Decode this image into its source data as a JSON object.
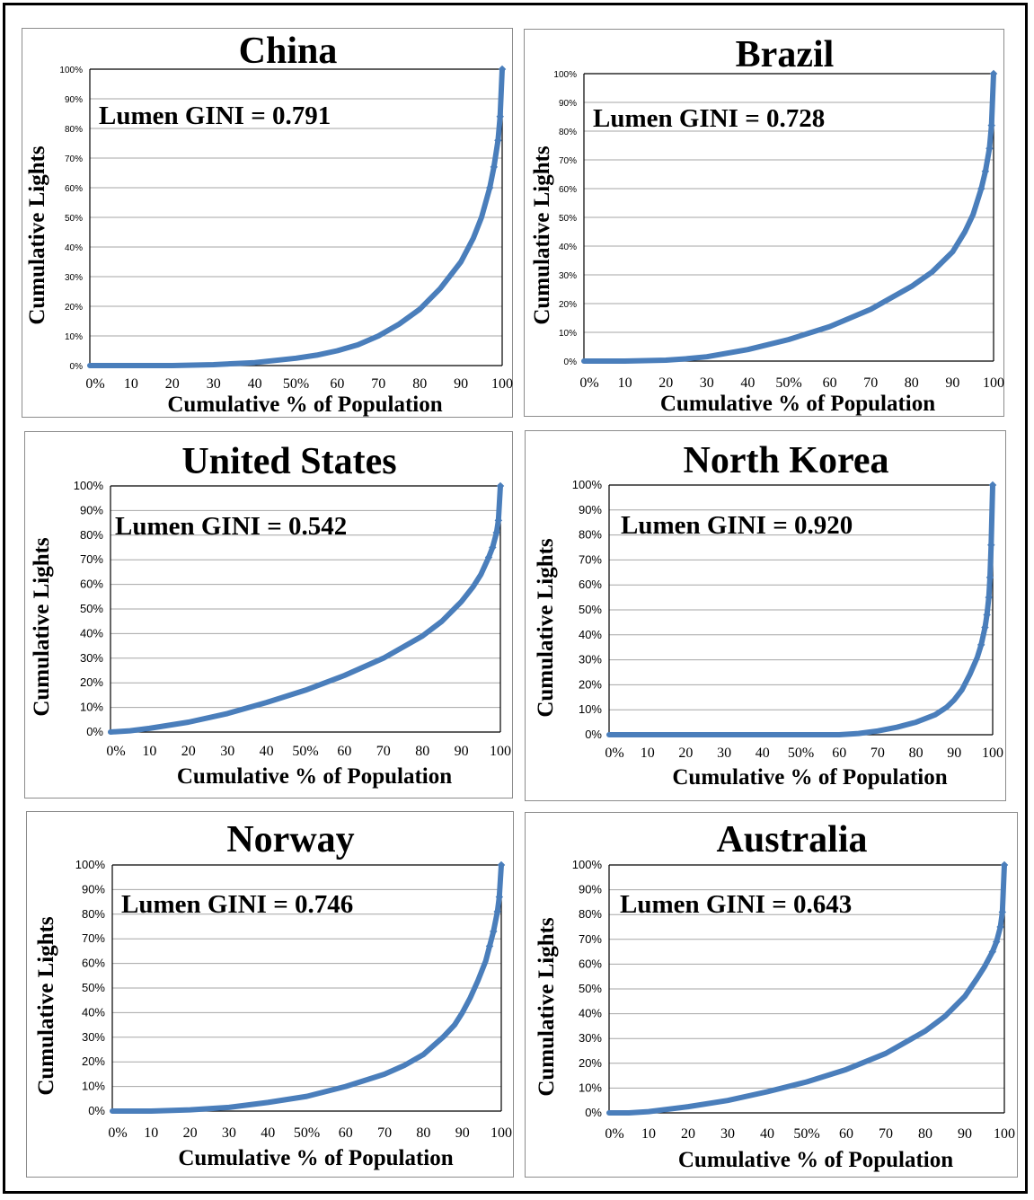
{
  "chart_data": [
    {
      "type": "line",
      "title": "China",
      "annotation": "Lumen GINI = 0.791",
      "xlabel": "Cumulative % of Population",
      "ylabel": "Cumulative Lights",
      "x_ticks": [
        "0%",
        "10",
        "20",
        "30",
        "40",
        "50%",
        "60",
        "70",
        "80",
        "90",
        "100"
      ],
      "y_ticks": [
        "0%",
        "10%",
        "20%",
        "30%",
        "40%",
        "50%",
        "60%",
        "70%",
        "80%",
        "90%",
        "100%"
      ],
      "xlim": [
        0,
        100
      ],
      "ylim": [
        0,
        100
      ],
      "grid": true,
      "series": [
        {
          "color": "#4a7ebb",
          "x": [
            0,
            10,
            20,
            30,
            40,
            50,
            55,
            60,
            65,
            70,
            75,
            80,
            85,
            90,
            93,
            95,
            97,
            98,
            99,
            99.5,
            100
          ],
          "y": [
            0,
            0,
            0,
            0.3,
            1,
            2.5,
            3.5,
            5,
            7,
            10,
            14,
            19,
            26,
            35,
            43,
            50,
            60,
            67,
            76,
            84,
            100
          ]
        }
      ]
    },
    {
      "type": "line",
      "title": "Brazil",
      "annotation": "Lumen GINI = 0.728",
      "xlabel": "Cumulative % of Population",
      "ylabel": "Cumulative Lights",
      "x_ticks": [
        "0%",
        "10",
        "20",
        "30",
        "40",
        "50%",
        "60",
        "70",
        "80",
        "90",
        "100"
      ],
      "y_ticks": [
        "0%",
        "10%",
        "20%",
        "30%",
        "40%",
        "50%",
        "60%",
        "70%",
        "80%",
        "90%",
        "100%"
      ],
      "xlim": [
        0,
        100
      ],
      "ylim": [
        0,
        100
      ],
      "grid": true,
      "series": [
        {
          "color": "#4a7ebb",
          "x": [
            0,
            10,
            20,
            25,
            30,
            40,
            50,
            60,
            70,
            80,
            85,
            90,
            93,
            95,
            97,
            98,
            99,
            99.5,
            100
          ],
          "y": [
            0,
            0,
            0.3,
            0.8,
            1.5,
            4,
            7.5,
            12,
            18,
            26,
            31,
            38,
            45,
            51,
            60,
            66,
            74,
            82,
            100
          ]
        }
      ]
    },
    {
      "type": "line",
      "title": "United States",
      "annotation": "Lumen GINI = 0.542",
      "xlabel": "Cumulative % of Population",
      "ylabel": "Cumulative Lights",
      "x_ticks": [
        "0%",
        "10",
        "20",
        "30",
        "40",
        "50%",
        "60",
        "70",
        "80",
        "90",
        "100"
      ],
      "y_ticks": [
        "0%",
        "10%",
        "20%",
        "30%",
        "40%",
        "50%",
        "60%",
        "70%",
        "80%",
        "90%",
        "100%"
      ],
      "xlim": [
        0,
        100
      ],
      "ylim": [
        0,
        100
      ],
      "grid": true,
      "series": [
        {
          "color": "#4a7ebb",
          "x": [
            0,
            5,
            10,
            20,
            30,
            40,
            50,
            60,
            70,
            80,
            85,
            90,
            93,
            95,
            97,
            98,
            99,
            99.5,
            100
          ],
          "y": [
            0,
            0.5,
            1.5,
            4,
            7.5,
            12,
            17,
            23,
            30,
            39,
            45,
            53,
            59,
            64,
            71,
            75,
            81,
            86,
            100
          ]
        }
      ]
    },
    {
      "type": "line",
      "title": "North Korea",
      "annotation": "Lumen GINI = 0.920",
      "xlabel": "Cumulative % of Population",
      "ylabel": "Cumulative Lights",
      "x_ticks": [
        "0%",
        "10",
        "20",
        "30",
        "40",
        "50%",
        "60",
        "70",
        "80",
        "90",
        "100"
      ],
      "y_ticks": [
        "0%",
        "10%",
        "20%",
        "30%",
        "40%",
        "50%",
        "60%",
        "70%",
        "80%",
        "90%",
        "100%"
      ],
      "xlim": [
        0,
        100
      ],
      "ylim": [
        0,
        100
      ],
      "grid": true,
      "series": [
        {
          "color": "#4a7ebb",
          "x": [
            0,
            10,
            20,
            30,
            40,
            50,
            60,
            65,
            70,
            75,
            80,
            85,
            88,
            90,
            92,
            94,
            96,
            97,
            98,
            98.5,
            99,
            99.3,
            99.6,
            100
          ],
          "y": [
            0,
            0,
            0,
            0,
            0,
            0,
            0,
            0.5,
            1.5,
            3,
            5,
            8,
            11,
            14,
            18,
            24,
            31,
            36,
            43,
            48,
            55,
            63,
            76,
            100
          ]
        }
      ]
    },
    {
      "type": "line",
      "title": "Norway",
      "annotation": "Lumen GINI = 0.746",
      "xlabel": "Cumulative % of Population",
      "ylabel": "Cumulative Lights",
      "x_ticks": [
        "0%",
        "10",
        "20",
        "30",
        "40",
        "50%",
        "60",
        "70",
        "80",
        "90",
        "100"
      ],
      "y_ticks": [
        "0%",
        "10%",
        "20%",
        "30%",
        "40%",
        "50%",
        "60%",
        "70%",
        "80%",
        "90%",
        "100%"
      ],
      "xlim": [
        0,
        100
      ],
      "ylim": [
        0,
        100
      ],
      "grid": true,
      "series": [
        {
          "color": "#4a7ebb",
          "x": [
            0,
            10,
            20,
            30,
            40,
            50,
            60,
            70,
            75,
            80,
            85,
            88,
            90,
            92,
            94,
            96,
            97,
            98,
            99,
            99.5,
            100
          ],
          "y": [
            0,
            0,
            0.5,
            1.5,
            3.5,
            6,
            10,
            15,
            18.5,
            23,
            30,
            35,
            40,
            46,
            53,
            61,
            67,
            73,
            81,
            87,
            100
          ]
        }
      ]
    },
    {
      "type": "line",
      "title": "Australia",
      "annotation": "Lumen GINI = 0.643",
      "xlabel": "Cumulative % of Population",
      "ylabel": "Cumulative Lights",
      "x_ticks": [
        "0%",
        "10",
        "20",
        "30",
        "40",
        "50%",
        "60",
        "70",
        "80",
        "90",
        "100"
      ],
      "y_ticks": [
        "0%",
        "10%",
        "20%",
        "30%",
        "40%",
        "50%",
        "60%",
        "70%",
        "80%",
        "90%",
        "100%"
      ],
      "xlim": [
        0,
        100
      ],
      "ylim": [
        0,
        100
      ],
      "grid": true,
      "series": [
        {
          "color": "#4a7ebb",
          "x": [
            0,
            5,
            10,
            20,
            30,
            40,
            50,
            60,
            70,
            80,
            85,
            90,
            93,
            95,
            97,
            98,
            99,
            99.5,
            100
          ],
          "y": [
            0,
            0,
            0.5,
            2.5,
            5,
            8.5,
            12.5,
            17.5,
            24,
            33,
            39,
            47,
            54,
            59,
            65,
            69,
            75,
            81,
            100
          ]
        }
      ]
    }
  ]
}
